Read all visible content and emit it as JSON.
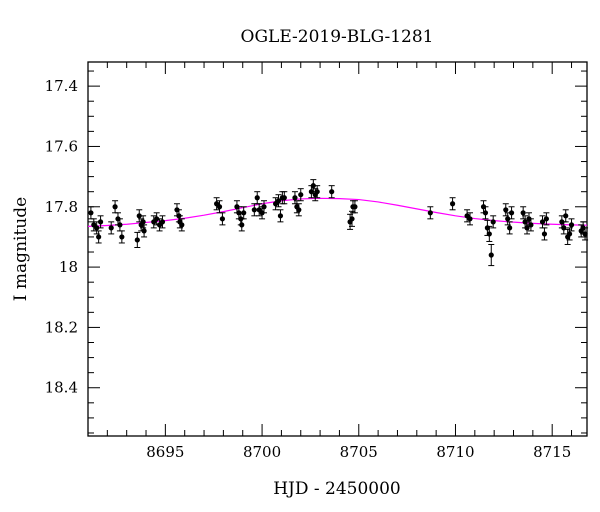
{
  "chart_data": {
    "type": "scatter",
    "title": "OGLE-2019-BLG-1281",
    "xlabel": "HJD - 2450000",
    "ylabel": "I magnitude",
    "xlim": [
      8691.0,
      8716.8
    ],
    "ylim": [
      18.56,
      17.32
    ],
    "y_inverted": true,
    "grid": false,
    "legend": "none",
    "xticks": [
      8695,
      8700,
      8705,
      8710,
      8715
    ],
    "xtick_labels": [
      "8695",
      "8700",
      "8705",
      "8710",
      "8715"
    ],
    "yticks": [
      17.4,
      17.6,
      17.8,
      18.0,
      18.2,
      18.4
    ],
    "ytick_labels": [
      "17.4",
      "17.6",
      "17.8",
      "18",
      "18.2",
      "18.4"
    ],
    "series": [
      {
        "kind": "points",
        "color": "#000000",
        "points": [
          {
            "x": 8691.15,
            "y": 17.82,
            "err": 0.02
          },
          {
            "x": 8691.3,
            "y": 17.86,
            "err": 0.02
          },
          {
            "x": 8691.45,
            "y": 17.87,
            "err": 0.02
          },
          {
            "x": 8691.55,
            "y": 17.9,
            "err": 0.02
          },
          {
            "x": 8691.65,
            "y": 17.85,
            "err": 0.02
          },
          {
            "x": 8692.2,
            "y": 17.87,
            "err": 0.02
          },
          {
            "x": 8692.4,
            "y": 17.8,
            "err": 0.02
          },
          {
            "x": 8692.55,
            "y": 17.84,
            "err": 0.02
          },
          {
            "x": 8692.65,
            "y": 17.86,
            "err": 0.02
          },
          {
            "x": 8692.75,
            "y": 17.9,
            "err": 0.02
          },
          {
            "x": 8693.55,
            "y": 17.91,
            "err": 0.025
          },
          {
            "x": 8693.75,
            "y": 17.86,
            "err": 0.02
          },
          {
            "x": 8693.9,
            "y": 17.88,
            "err": 0.02
          },
          {
            "x": 8693.65,
            "y": 17.83,
            "err": 0.02
          },
          {
            "x": 8693.85,
            "y": 17.85,
            "err": 0.02
          },
          {
            "x": 8694.4,
            "y": 17.85,
            "err": 0.02
          },
          {
            "x": 8694.55,
            "y": 17.84,
            "err": 0.02
          },
          {
            "x": 8694.7,
            "y": 17.86,
            "err": 0.02
          },
          {
            "x": 8694.85,
            "y": 17.85,
            "err": 0.02
          },
          {
            "x": 8695.6,
            "y": 17.81,
            "err": 0.02
          },
          {
            "x": 8695.7,
            "y": 17.83,
            "err": 0.02
          },
          {
            "x": 8695.75,
            "y": 17.85,
            "err": 0.02
          },
          {
            "x": 8695.85,
            "y": 17.86,
            "err": 0.02
          },
          {
            "x": 8697.65,
            "y": 17.79,
            "err": 0.02
          },
          {
            "x": 8697.8,
            "y": 17.8,
            "err": 0.02
          },
          {
            "x": 8697.95,
            "y": 17.84,
            "err": 0.02
          },
          {
            "x": 8698.7,
            "y": 17.8,
            "err": 0.02
          },
          {
            "x": 8698.8,
            "y": 17.82,
            "err": 0.02
          },
          {
            "x": 8698.9,
            "y": 17.84,
            "err": 0.02
          },
          {
            "x": 8698.95,
            "y": 17.86,
            "err": 0.02
          },
          {
            "x": 8699.05,
            "y": 17.82,
            "err": 0.02
          },
          {
            "x": 8699.6,
            "y": 17.81,
            "err": 0.02
          },
          {
            "x": 8699.75,
            "y": 17.77,
            "err": 0.02
          },
          {
            "x": 8699.85,
            "y": 17.81,
            "err": 0.02
          },
          {
            "x": 8700.0,
            "y": 17.82,
            "err": 0.02
          },
          {
            "x": 8700.1,
            "y": 17.8,
            "err": 0.02
          },
          {
            "x": 8700.7,
            "y": 17.79,
            "err": 0.02
          },
          {
            "x": 8700.85,
            "y": 17.78,
            "err": 0.02
          },
          {
            "x": 8700.95,
            "y": 17.83,
            "err": 0.02
          },
          {
            "x": 8701.05,
            "y": 17.77,
            "err": 0.02
          },
          {
            "x": 8701.15,
            "y": 17.77,
            "err": 0.02
          },
          {
            "x": 8701.7,
            "y": 17.77,
            "err": 0.02
          },
          {
            "x": 8701.8,
            "y": 17.8,
            "err": 0.02
          },
          {
            "x": 8701.9,
            "y": 17.81,
            "err": 0.02
          },
          {
            "x": 8702.0,
            "y": 17.76,
            "err": 0.02
          },
          {
            "x": 8702.55,
            "y": 17.75,
            "err": 0.02
          },
          {
            "x": 8702.65,
            "y": 17.73,
            "err": 0.02
          },
          {
            "x": 8702.75,
            "y": 17.76,
            "err": 0.02
          },
          {
            "x": 8702.85,
            "y": 17.75,
            "err": 0.02
          },
          {
            "x": 8703.6,
            "y": 17.75,
            "err": 0.02
          },
          {
            "x": 8704.55,
            "y": 17.85,
            "err": 0.025
          },
          {
            "x": 8704.65,
            "y": 17.84,
            "err": 0.025
          },
          {
            "x": 8704.7,
            "y": 17.8,
            "err": 0.02
          },
          {
            "x": 8704.8,
            "y": 17.8,
            "err": 0.02
          },
          {
            "x": 8708.7,
            "y": 17.82,
            "err": 0.02
          },
          {
            "x": 8709.85,
            "y": 17.79,
            "err": 0.02
          },
          {
            "x": 8710.6,
            "y": 17.83,
            "err": 0.02
          },
          {
            "x": 8710.75,
            "y": 17.84,
            "err": 0.02
          },
          {
            "x": 8711.45,
            "y": 17.8,
            "err": 0.02
          },
          {
            "x": 8711.55,
            "y": 17.82,
            "err": 0.02
          },
          {
            "x": 8711.65,
            "y": 17.87,
            "err": 0.025
          },
          {
            "x": 8711.75,
            "y": 17.89,
            "err": 0.025
          },
          {
            "x": 8711.85,
            "y": 17.96,
            "err": 0.035
          },
          {
            "x": 8711.95,
            "y": 17.85,
            "err": 0.02
          },
          {
            "x": 8712.6,
            "y": 17.81,
            "err": 0.02
          },
          {
            "x": 8712.7,
            "y": 17.84,
            "err": 0.02
          },
          {
            "x": 8712.8,
            "y": 17.87,
            "err": 0.02
          },
          {
            "x": 8712.9,
            "y": 17.82,
            "err": 0.02
          },
          {
            "x": 8713.5,
            "y": 17.82,
            "err": 0.02
          },
          {
            "x": 8713.6,
            "y": 17.85,
            "err": 0.02
          },
          {
            "x": 8713.7,
            "y": 17.87,
            "err": 0.02
          },
          {
            "x": 8713.8,
            "y": 17.84,
            "err": 0.02
          },
          {
            "x": 8713.9,
            "y": 17.86,
            "err": 0.02
          },
          {
            "x": 8714.5,
            "y": 17.85,
            "err": 0.02
          },
          {
            "x": 8714.6,
            "y": 17.89,
            "err": 0.02
          },
          {
            "x": 8714.7,
            "y": 17.84,
            "err": 0.02
          },
          {
            "x": 8715.5,
            "y": 17.85,
            "err": 0.02
          },
          {
            "x": 8715.6,
            "y": 17.87,
            "err": 0.02
          },
          {
            "x": 8715.7,
            "y": 17.83,
            "err": 0.02
          },
          {
            "x": 8715.8,
            "y": 17.9,
            "err": 0.025
          },
          {
            "x": 8715.9,
            "y": 17.89,
            "err": 0.02
          },
          {
            "x": 8716.0,
            "y": 17.86,
            "err": 0.02
          },
          {
            "x": 8716.5,
            "y": 17.88,
            "err": 0.02
          },
          {
            "x": 8716.6,
            "y": 17.87,
            "err": 0.02
          },
          {
            "x": 8716.7,
            "y": 17.89,
            "err": 0.02
          }
        ]
      },
      {
        "kind": "model-curve",
        "color": "#ff00ff",
        "x": [
          8691,
          8692,
          8693,
          8694,
          8695,
          8696,
          8697,
          8698,
          8699,
          8700,
          8701,
          8702,
          8703,
          8704,
          8705,
          8706,
          8707,
          8708,
          8709,
          8710,
          8711,
          8712,
          8713,
          8714,
          8715,
          8716,
          8716.8
        ],
        "y": [
          17.865,
          17.862,
          17.858,
          17.852,
          17.846,
          17.838,
          17.828,
          17.816,
          17.803,
          17.79,
          17.78,
          17.774,
          17.772,
          17.773,
          17.776,
          17.784,
          17.795,
          17.807,
          17.819,
          17.83,
          17.839,
          17.846,
          17.851,
          17.855,
          17.858,
          17.86,
          17.861
        ]
      }
    ]
  }
}
